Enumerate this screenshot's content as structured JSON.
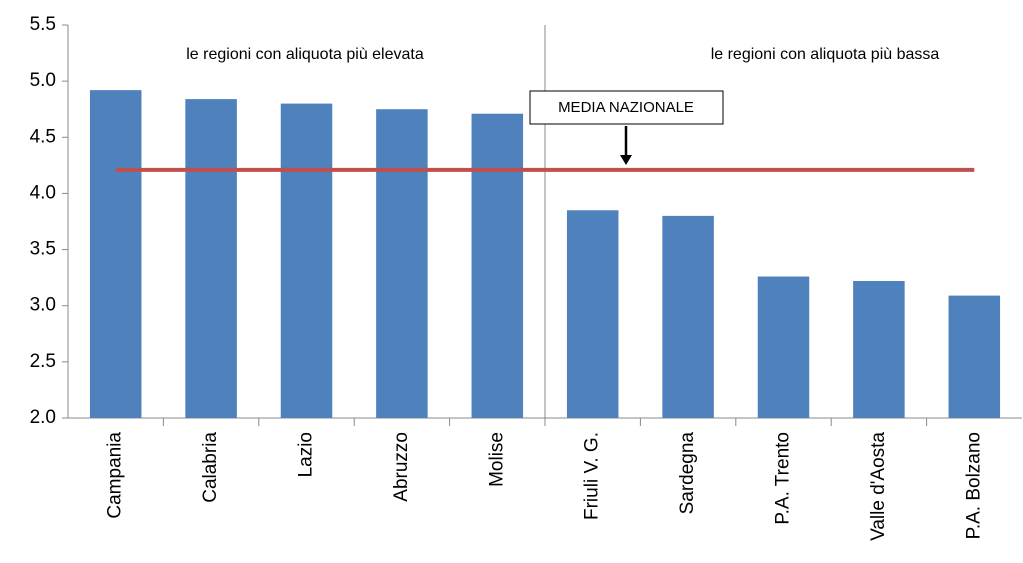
{
  "chart_data": {
    "type": "bar",
    "categories": [
      "Campania",
      "Calabria",
      "Lazio",
      "Abruzzo",
      "Molise",
      "Friuli V. G.",
      "Sardegna",
      "P.A. Trento",
      "Valle d'Aosta",
      "P.A. Bolzano"
    ],
    "values": [
      4.92,
      4.84,
      4.8,
      4.75,
      4.71,
      3.85,
      3.8,
      3.26,
      3.22,
      3.09
    ],
    "color": "#4f81bd",
    "ylim": [
      2,
      5.5
    ],
    "yticks": [
      {
        "value": 2,
        "label": "2.0"
      },
      2.5,
      {
        "value": 3,
        "label": "3.0"
      },
      3.5,
      {
        "value": 4,
        "label": "4.0"
      },
      4.5,
      {
        "value": 5,
        "label": "5.0"
      },
      5.5
    ],
    "reference_line": {
      "label": "MEDIA NAZIONALE",
      "value": 4.21,
      "color": "#c0504d"
    },
    "annotations": [
      "le regioni con aliquota più elevata",
      "le regioni con aliquota più bassa"
    ]
  }
}
